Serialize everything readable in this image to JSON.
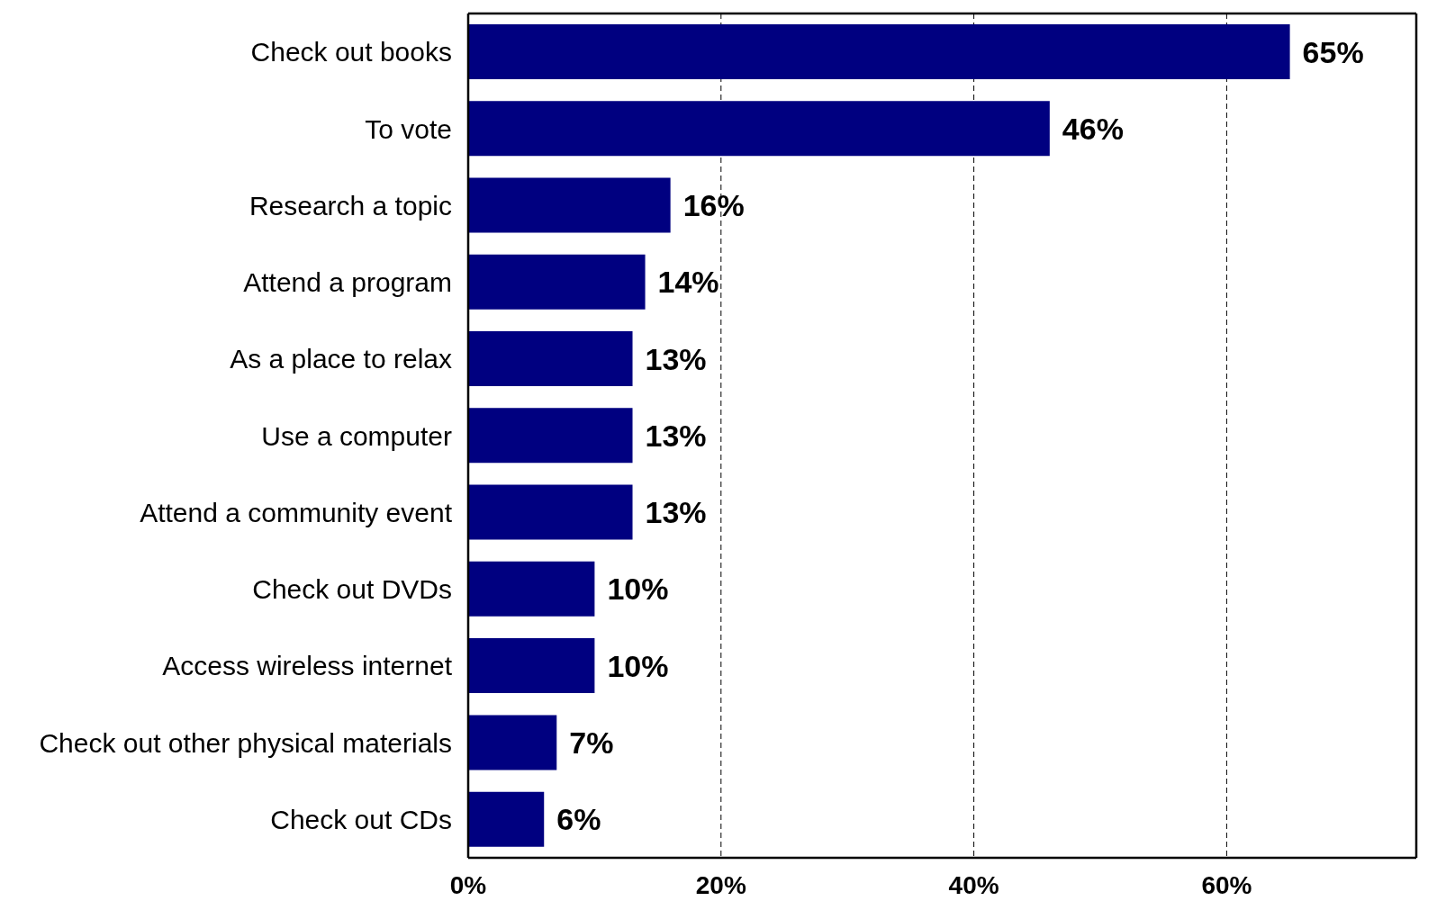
{
  "chart_data": {
    "type": "bar",
    "orientation": "horizontal",
    "categories": [
      "Check out books",
      "To vote",
      "Research a topic",
      "Attend a program",
      "As a place to relax",
      "Use a computer",
      "Attend a community event",
      "Check out DVDs",
      "Access wireless internet",
      "Check out other physical materials",
      "Check out CDs"
    ],
    "values": [
      65,
      46,
      16,
      14,
      13,
      13,
      13,
      10,
      10,
      7,
      6
    ],
    "value_labels": [
      "65%",
      "46%",
      "16%",
      "14%",
      "13%",
      "13%",
      "13%",
      "10%",
      "10%",
      "7%",
      "6%"
    ],
    "color": "#000080",
    "xlim": [
      0,
      75
    ],
    "xticks": [
      {
        "value": 0,
        "label": "0%"
      },
      {
        "value": 20,
        "label": "20%"
      },
      {
        "value": 40,
        "label": "40%"
      },
      {
        "value": 60,
        "label": "60%"
      }
    ],
    "grid": "x"
  }
}
